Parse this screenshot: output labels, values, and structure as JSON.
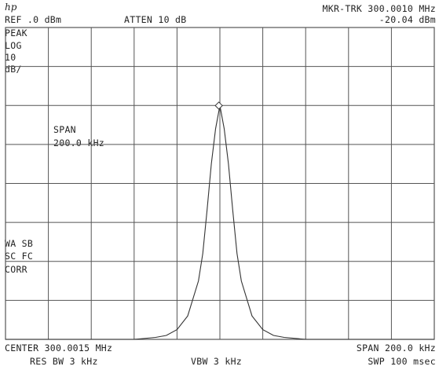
{
  "header": {
    "logo": "hp",
    "ref_level": "REF .0 dBm",
    "attenuation": "ATTEN 10 dB",
    "marker_freq": "MKR-TRK 300.0010 MHz",
    "marker_level": "-20.04 dBm"
  },
  "left_panel": {
    "detector": "PEAK",
    "scale_type": "LOG",
    "scale_value": "10",
    "scale_unit": "dB/",
    "status_1": "WA SB",
    "status_2": "SC FC",
    "status_3": "CORR"
  },
  "annotation": {
    "span_label": "SPAN",
    "span_value": "200.0 kHz"
  },
  "footer": {
    "center_freq": "CENTER 300.0015 MHz",
    "span": "SPAN 200.0 kHz",
    "res_bw": "RES BW 3 kHz",
    "vbw": "VBW 3 kHz",
    "sweep_time": "SWP 100 msec"
  },
  "colors": {
    "trace": "#333333",
    "grid": "#555555",
    "background": "#ffffff"
  },
  "chart_data": {
    "type": "line",
    "center_mhz": 300.0015,
    "span_khz": 200.0,
    "ref_level_dbm": 0,
    "db_per_div": 10,
    "x_divisions": 10,
    "y_divisions": 8,
    "marker": {
      "x_khz_offset": -0.5,
      "y_dbm": -20.04
    },
    "series": [
      {
        "x_khz_offset": [
          -100,
          -40,
          -30,
          -25,
          -20,
          -15,
          -10,
          -8,
          -6,
          -4,
          -2,
          0,
          2,
          4,
          6,
          8,
          10,
          15,
          20,
          25,
          30,
          40,
          100
        ],
        "y_dbm": [
          -80,
          -80,
          -79.5,
          -79,
          -77.5,
          -74,
          -65,
          -58,
          -47,
          -35,
          -26,
          -20.04,
          -26,
          -35,
          -47,
          -58,
          -65,
          -74,
          -77.5,
          -79,
          -79.5,
          -80,
          -80
        ]
      }
    ]
  }
}
